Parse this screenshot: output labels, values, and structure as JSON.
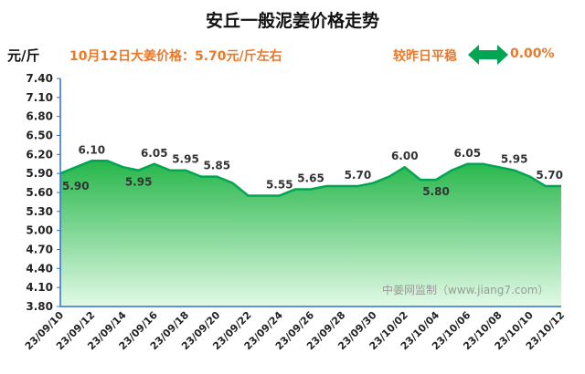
{
  "header": {
    "title": "安丘一般泥姜价格走势",
    "unit": "元/斤",
    "price_text": "10月12日大姜价格：5.70元/斤左右",
    "compare_text": "较昨日平稳",
    "change_text": "0.00%"
  },
  "colors": {
    "accent_orange": "#E8792A",
    "line_green": "#00A651",
    "fill_top": "#26B64A",
    "fill_bottom": "#D9F7DF",
    "axis_blue": "#2E6FD4"
  },
  "icons": {
    "trend": "double-arrow-icon"
  },
  "watermark": "中姜网监制（www.jiang7.com）",
  "chart_data": {
    "type": "area",
    "title": "安丘一般泥姜价格走势",
    "ylabel": "元/斤",
    "ylim": [
      3.8,
      7.4
    ],
    "yticks": [
      "7.40",
      "7.10",
      "6.80",
      "6.50",
      "6.20",
      "5.90",
      "5.60",
      "5.30",
      "5.00",
      "4.70",
      "4.40",
      "4.10",
      "3.80"
    ],
    "x": [
      "23/09/10",
      "23/09/11",
      "23/09/12",
      "23/09/13",
      "23/09/14",
      "23/09/15",
      "23/09/16",
      "23/09/17",
      "23/09/18",
      "23/09/19",
      "23/09/20",
      "23/09/21",
      "23/09/22",
      "23/09/23",
      "23/09/24",
      "23/09/25",
      "23/09/26",
      "23/09/27",
      "23/09/28",
      "23/09/29",
      "23/09/30",
      "23/10/01",
      "23/10/02",
      "23/10/03",
      "23/10/04",
      "23/10/05",
      "23/10/06",
      "23/10/07",
      "23/10/08",
      "23/10/09",
      "23/10/10",
      "23/10/11",
      "23/10/12"
    ],
    "values": [
      5.9,
      6.0,
      6.1,
      6.1,
      6.0,
      5.95,
      6.05,
      5.95,
      5.95,
      5.85,
      5.85,
      5.75,
      5.55,
      5.55,
      5.55,
      5.65,
      5.65,
      5.7,
      5.7,
      5.7,
      5.75,
      5.85,
      6.0,
      5.8,
      5.8,
      5.95,
      6.05,
      6.05,
      6.0,
      5.95,
      5.85,
      5.7,
      5.7
    ],
    "xtick_labels": [
      "23/09/10",
      "23/09/12",
      "23/09/14",
      "23/09/16",
      "23/09/18",
      "23/09/20",
      "23/09/22",
      "23/09/24",
      "23/09/26",
      "23/09/28",
      "23/09/30",
      "23/10/02",
      "23/10/04",
      "23/10/06",
      "23/10/08",
      "23/10/10",
      "23/10/12"
    ],
    "data_labels": [
      {
        "x": "23/09/10",
        "text": "5.90"
      },
      {
        "x": "23/09/12",
        "text": "6.10"
      },
      {
        "x": "23/09/15",
        "text": "5.95"
      },
      {
        "x": "23/09/16",
        "text": "6.05"
      },
      {
        "x": "23/09/18",
        "text": "5.95"
      },
      {
        "x": "23/09/20",
        "text": "5.85"
      },
      {
        "x": "23/09/24",
        "text": "5.55"
      },
      {
        "x": "23/09/26",
        "text": "5.65"
      },
      {
        "x": "23/09/29",
        "text": "5.70"
      },
      {
        "x": "23/10/02",
        "text": "6.00"
      },
      {
        "x": "23/10/04",
        "text": "5.80"
      },
      {
        "x": "23/10/06",
        "text": "6.05"
      },
      {
        "x": "23/10/09",
        "text": "5.95"
      },
      {
        "x": "23/10/12",
        "text": "5.70"
      }
    ],
    "grid": false,
    "legend": "none"
  }
}
